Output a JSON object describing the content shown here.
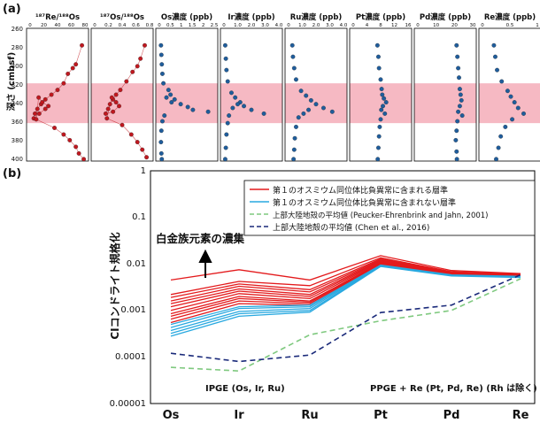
{
  "panel_a": {
    "label": "(a)",
    "ylabel": "深さ (cmbsf)",
    "yticks": [
      "260",
      "280",
      "300",
      "320",
      "340",
      "360",
      "380",
      "400"
    ],
    "ylim": [
      260,
      400
    ],
    "highlight_band": [
      318,
      360
    ],
    "highlight_color": "#f6b9c3",
    "subplots": [
      {
        "title": "¹⁸⁷Re/¹⁸⁸Os",
        "xticks": [
          "0",
          "20",
          "40",
          "60",
          "80"
        ],
        "xlim": [
          0,
          90
        ],
        "color": "#c0181f",
        "kind": "dots-line",
        "points": [
          [
            85,
            278
          ],
          [
            75,
            298
          ],
          [
            70,
            302
          ],
          [
            62,
            308
          ],
          [
            55,
            318
          ],
          [
            45,
            325
          ],
          [
            35,
            330
          ],
          [
            25,
            335
          ],
          [
            18,
            340
          ],
          [
            12,
            345
          ],
          [
            8,
            350
          ],
          [
            6,
            355
          ],
          [
            15,
            350
          ],
          [
            25,
            345
          ],
          [
            30,
            342
          ],
          [
            20,
            338
          ],
          [
            14,
            333
          ],
          [
            10,
            356
          ],
          [
            40,
            365
          ],
          [
            55,
            372
          ],
          [
            65,
            378
          ],
          [
            75,
            385
          ],
          [
            80,
            392
          ],
          [
            88,
            398
          ]
        ]
      },
      {
        "title": "¹⁸⁷Os/¹⁸⁸Os",
        "xticks": [
          "0",
          "0.2",
          "0.4",
          "0.6",
          "0.8"
        ],
        "xlim": [
          0,
          0.9
        ],
        "color": "#c0181f",
        "kind": "dots-line",
        "points": [
          [
            0.82,
            278
          ],
          [
            0.75,
            292
          ],
          [
            0.7,
            300
          ],
          [
            0.62,
            306
          ],
          [
            0.52,
            316
          ],
          [
            0.42,
            325
          ],
          [
            0.35,
            330
          ],
          [
            0.3,
            335
          ],
          [
            0.25,
            340
          ],
          [
            0.22,
            345
          ],
          [
            0.18,
            350
          ],
          [
            0.3,
            348
          ],
          [
            0.4,
            342
          ],
          [
            0.35,
            338
          ],
          [
            0.28,
            333
          ],
          [
            0.2,
            355
          ],
          [
            0.45,
            362
          ],
          [
            0.6,
            372
          ],
          [
            0.7,
            380
          ],
          [
            0.78,
            388
          ],
          [
            0.85,
            396
          ]
        ]
      },
      {
        "title": "Os濃度 (ppb)",
        "xticks": [
          "0",
          "0.5",
          "1",
          "1.5",
          "2",
          "2.5"
        ],
        "xlim": [
          0,
          2.7
        ],
        "color": "#1f5d9c",
        "kind": "dots",
        "points": [
          [
            0.08,
            278
          ],
          [
            0.1,
            288
          ],
          [
            0.12,
            298
          ],
          [
            0.15,
            308
          ],
          [
            0.2,
            318
          ],
          [
            0.45,
            325
          ],
          [
            0.55,
            330
          ],
          [
            0.75,
            335
          ],
          [
            1.05,
            340
          ],
          [
            1.4,
            343
          ],
          [
            1.65,
            346
          ],
          [
            2.4,
            348
          ],
          [
            0.6,
            338
          ],
          [
            0.35,
            333
          ],
          [
            0.25,
            352
          ],
          [
            0.15,
            358
          ],
          [
            0.1,
            368
          ],
          [
            0.08,
            380
          ],
          [
            0.1,
            392
          ],
          [
            0.12,
            398
          ]
        ]
      },
      {
        "title": "Ir濃度 (ppb)",
        "xticks": [
          "0",
          "1.0",
          "2.0",
          "3.0",
          "4.0"
        ],
        "xlim": [
          0,
          4.4
        ],
        "color": "#1f5d9c",
        "kind": "dots",
        "points": [
          [
            0.1,
            278
          ],
          [
            0.15,
            292
          ],
          [
            0.2,
            304
          ],
          [
            0.3,
            316
          ],
          [
            0.6,
            328
          ],
          [
            0.9,
            333
          ],
          [
            1.3,
            338
          ],
          [
            1.6,
            342
          ],
          [
            2.2,
            346
          ],
          [
            3.2,
            350
          ],
          [
            1.1,
            340
          ],
          [
            0.7,
            344
          ],
          [
            0.4,
            352
          ],
          [
            0.3,
            360
          ],
          [
            0.2,
            372
          ],
          [
            0.15,
            386
          ],
          [
            0.1,
            398
          ]
        ]
      },
      {
        "title": "Ru濃度 (ppb)",
        "xticks": [
          "0",
          "1.0",
          "2.0",
          "3.0",
          "4.0"
        ],
        "xlim": [
          0,
          4.4
        ],
        "color": "#1f5d9c",
        "kind": "dots",
        "points": [
          [
            0.3,
            278
          ],
          [
            0.35,
            290
          ],
          [
            0.45,
            302
          ],
          [
            0.6,
            314
          ],
          [
            1.0,
            326
          ],
          [
            1.4,
            331
          ],
          [
            1.8,
            336
          ],
          [
            2.2,
            340
          ],
          [
            2.8,
            344
          ],
          [
            3.5,
            348
          ],
          [
            1.6,
            346
          ],
          [
            1.2,
            350
          ],
          [
            0.8,
            354
          ],
          [
            0.6,
            364
          ],
          [
            0.5,
            376
          ],
          [
            0.45,
            388
          ],
          [
            0.4,
            398
          ]
        ]
      },
      {
        "title": "Pt濃度 (ppb)",
        "xticks": [
          "0",
          "4",
          "8",
          "12",
          "16"
        ],
        "xlim": [
          0,
          17
        ],
        "color": "#1f5d9c",
        "kind": "dots",
        "points": [
          [
            7.5,
            278
          ],
          [
            7.8,
            290
          ],
          [
            8.0,
            302
          ],
          [
            8.5,
            314
          ],
          [
            8.8,
            324
          ],
          [
            9.0,
            330
          ],
          [
            9.5,
            334
          ],
          [
            10.2,
            338
          ],
          [
            9.2,
            342
          ],
          [
            8.7,
            346
          ],
          [
            9.8,
            350
          ],
          [
            8.5,
            356
          ],
          [
            8.2,
            364
          ],
          [
            8.0,
            374
          ],
          [
            7.8,
            386
          ],
          [
            7.6,
            398
          ]
        ]
      },
      {
        "title": "Pd濃度 (ppb)",
        "xticks": [
          "0",
          "10",
          "20",
          "30"
        ],
        "xlim": [
          0,
          34
        ],
        "color": "#1f5d9c",
        "kind": "dots",
        "points": [
          [
            24,
            278
          ],
          [
            24.5,
            290
          ],
          [
            25,
            302
          ],
          [
            25.5,
            312
          ],
          [
            26,
            324
          ],
          [
            26.5,
            330
          ],
          [
            27,
            336
          ],
          [
            26,
            342
          ],
          [
            25,
            348
          ],
          [
            27.5,
            352
          ],
          [
            24.5,
            358
          ],
          [
            24,
            368
          ],
          [
            23.5,
            378
          ],
          [
            24,
            390
          ],
          [
            24.2,
            398
          ]
        ]
      },
      {
        "title": "Re濃度 (ppb)",
        "xticks": [
          "0",
          "0.5",
          "1"
        ],
        "xlim": [
          0,
          1.2
        ],
        "color": "#1f5d9c",
        "kind": "dots",
        "points": [
          [
            0.25,
            278
          ],
          [
            0.28,
            290
          ],
          [
            0.32,
            304
          ],
          [
            0.42,
            316
          ],
          [
            0.55,
            326
          ],
          [
            0.62,
            332
          ],
          [
            0.7,
            338
          ],
          [
            0.78,
            344
          ],
          [
            0.9,
            350
          ],
          [
            0.65,
            356
          ],
          [
            0.5,
            364
          ],
          [
            0.4,
            374
          ],
          [
            0.35,
            386
          ],
          [
            0.3,
            398
          ]
        ]
      }
    ]
  },
  "panel_b": {
    "label": "(b)",
    "ylabel": "CIコンドライト規格化",
    "yticks": [
      "1",
      "0.1",
      "0.01",
      "0.001",
      "0.0001",
      "0.00001"
    ],
    "categories": [
      "Os",
      "Ir",
      "Ru",
      "Pt",
      "Pd",
      "Re"
    ],
    "legend": [
      "第１のオスミウム同位体比負異常に含まれる層準",
      "第１のオスミウム同位体比負異常に含まれない層準",
      "上部大陸地殻の平均値 (Peucker-Ehrenbrink and Jahn, 2001)",
      "上部大陸地殻の平均値 (Chen et al., 2016)"
    ],
    "annotation": "白金族元素の濃集",
    "ipge_label": "IPGE (Os, Ir, Ru)",
    "ppge_label": "PPGE + Re (Pt, Pd, Re) (Rh は除く)"
  },
  "chart_data": {
    "type": "line",
    "log_y": true,
    "ylim": [
      1e-05,
      1
    ],
    "categories": [
      "Os",
      "Ir",
      "Ru",
      "Pt",
      "Pd",
      "Re"
    ],
    "colors": {
      "in": "#e31a1c",
      "out": "#29a9e0",
      "pe": "#7fc97f",
      "chen": "#1a2a7a"
    },
    "series": [
      {
        "group": "in",
        "values": [
          0.0045,
          0.0075,
          0.0045,
          0.015,
          0.0072,
          0.0062
        ]
      },
      {
        "group": "in",
        "values": [
          0.0022,
          0.0042,
          0.0034,
          0.0135,
          0.0068,
          0.006
        ]
      },
      {
        "group": "in",
        "values": [
          0.0019,
          0.0037,
          0.0028,
          0.0128,
          0.0066,
          0.0059
        ]
      },
      {
        "group": "in",
        "values": [
          0.0016,
          0.0033,
          0.0025,
          0.0122,
          0.0064,
          0.0058
        ]
      },
      {
        "group": "in",
        "values": [
          0.0014,
          0.0029,
          0.0022,
          0.0118,
          0.0063,
          0.0057
        ]
      },
      {
        "group": "in",
        "values": [
          0.0012,
          0.0026,
          0.002,
          0.0114,
          0.0062,
          0.0057
        ]
      },
      {
        "group": "in",
        "values": [
          0.001,
          0.0023,
          0.0018,
          0.011,
          0.0061,
          0.0056
        ]
      },
      {
        "group": "in",
        "values": [
          0.00085,
          0.002,
          0.0016,
          0.0106,
          0.006,
          0.0056
        ]
      },
      {
        "group": "in",
        "values": [
          0.00075,
          0.0018,
          0.0015,
          0.0103,
          0.006,
          0.0055
        ]
      },
      {
        "group": "in",
        "values": [
          0.00065,
          0.0016,
          0.0014,
          0.01,
          0.0059,
          0.0055
        ]
      },
      {
        "group": "in",
        "values": [
          0.00055,
          0.0014,
          0.0013,
          0.0098,
          0.0059,
          0.0054
        ]
      },
      {
        "group": "out",
        "values": [
          0.0005,
          0.0012,
          0.0013,
          0.0094,
          0.0058,
          0.0054
        ]
      },
      {
        "group": "out",
        "values": [
          0.00043,
          0.0011,
          0.0012,
          0.0092,
          0.0057,
          0.0053
        ]
      },
      {
        "group": "out",
        "values": [
          0.00037,
          0.00095,
          0.0011,
          0.009,
          0.0057,
          0.0052
        ]
      },
      {
        "group": "out",
        "values": [
          0.00032,
          0.00085,
          0.001,
          0.0089,
          0.0056,
          0.0052
        ]
      },
      {
        "group": "out",
        "values": [
          0.00028,
          0.00075,
          0.00092,
          0.0088,
          0.0055,
          0.0051
        ]
      },
      {
        "group": "pe",
        "values": [
          6e-05,
          5e-05,
          0.0003,
          0.0006,
          0.001,
          0.0048
        ]
      },
      {
        "group": "chen",
        "values": [
          0.00012,
          8e-05,
          0.00011,
          0.0009,
          0.0013,
          0.0058
        ]
      }
    ]
  }
}
